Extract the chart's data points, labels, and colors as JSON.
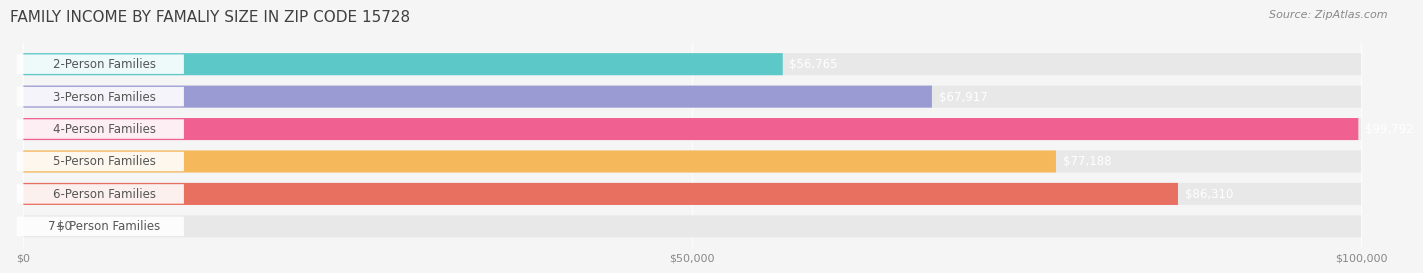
{
  "title": "FAMILY INCOME BY FAMALIY SIZE IN ZIP CODE 15728",
  "source": "Source: ZipAtlas.com",
  "categories": [
    "2-Person Families",
    "3-Person Families",
    "4-Person Families",
    "5-Person Families",
    "6-Person Families",
    "7+ Person Families"
  ],
  "values": [
    56765,
    67917,
    99792,
    77188,
    86310,
    0
  ],
  "value_labels": [
    "$56,765",
    "$67,917",
    "$99,792",
    "$77,188",
    "$86,310",
    "$0"
  ],
  "bar_colors": [
    "#5CC8C8",
    "#9B9BD4",
    "#F06090",
    "#F5B85A",
    "#E87060",
    "#A8C8E8"
  ],
  "bar_colors_light": [
    "#A0E0E0",
    "#C0C0E8",
    "#F8A0B8",
    "#F8D090",
    "#F0A898",
    "#C8DDF0"
  ],
  "xlim": [
    0,
    100000
  ],
  "xticks": [
    0,
    50000,
    100000
  ],
  "xtick_labels": [
    "$0",
    "$50,000",
    "$100,000"
  ],
  "background_color": "#f5f5f5",
  "bar_background_color": "#e8e8e8",
  "title_fontsize": 11,
  "label_fontsize": 8.5,
  "value_fontsize": 8.5,
  "bar_height": 0.68,
  "bar_gap": 0.05
}
